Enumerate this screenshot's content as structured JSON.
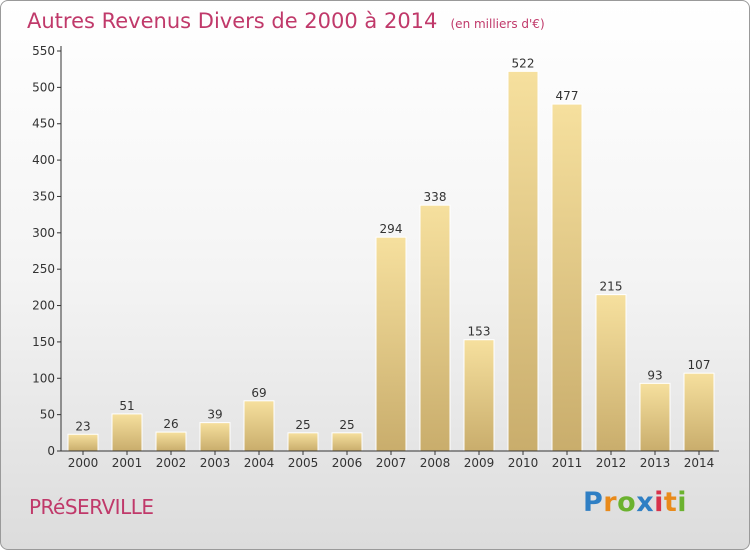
{
  "header": {
    "title": "Autres Revenus Divers de 2000 à 2014",
    "unit_note": "(en milliers d'€)"
  },
  "footer": {
    "commune": "PRéSERVILLE",
    "logo_text": "Proxiti"
  },
  "colors": {
    "title": "#c0396a",
    "bar_light": "#f6e09e",
    "bar_dark": "#c9ad6c",
    "axis": "#333333"
  },
  "chart_data": {
    "type": "bar",
    "categories": [
      "2000",
      "2001",
      "2002",
      "2003",
      "2004",
      "2005",
      "2006",
      "2007",
      "2008",
      "2009",
      "2010",
      "2011",
      "2012",
      "2013",
      "2014"
    ],
    "values": [
      23,
      51,
      26,
      39,
      69,
      25,
      25,
      294,
      338,
      153,
      522,
      477,
      215,
      93,
      107
    ],
    "ylim": [
      0,
      550
    ],
    "yticks": [
      0,
      50,
      100,
      150,
      200,
      250,
      300,
      350,
      400,
      450,
      500,
      550
    ],
    "grid": false,
    "legend": "none"
  }
}
